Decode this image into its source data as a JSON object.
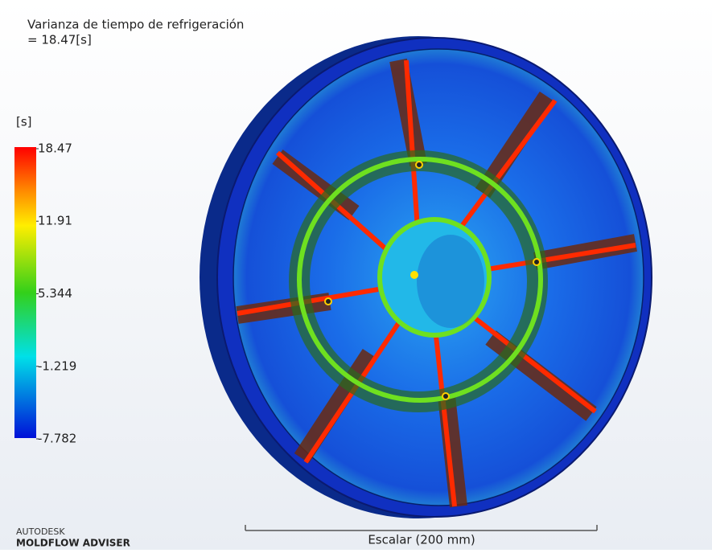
{
  "header": {
    "title": "Varianza de tiempo de refrigeración",
    "value": "= 18.47[s]"
  },
  "legend": {
    "unit": "[s]",
    "ticks": [
      18.47,
      11.91,
      5.344,
      -1.219,
      -7.782
    ]
  },
  "scale": {
    "label": "Escalar (200 mm)"
  },
  "logo": {
    "brand": "AUTODESK",
    "product": "MOLDFLOW ADVISER"
  }
}
